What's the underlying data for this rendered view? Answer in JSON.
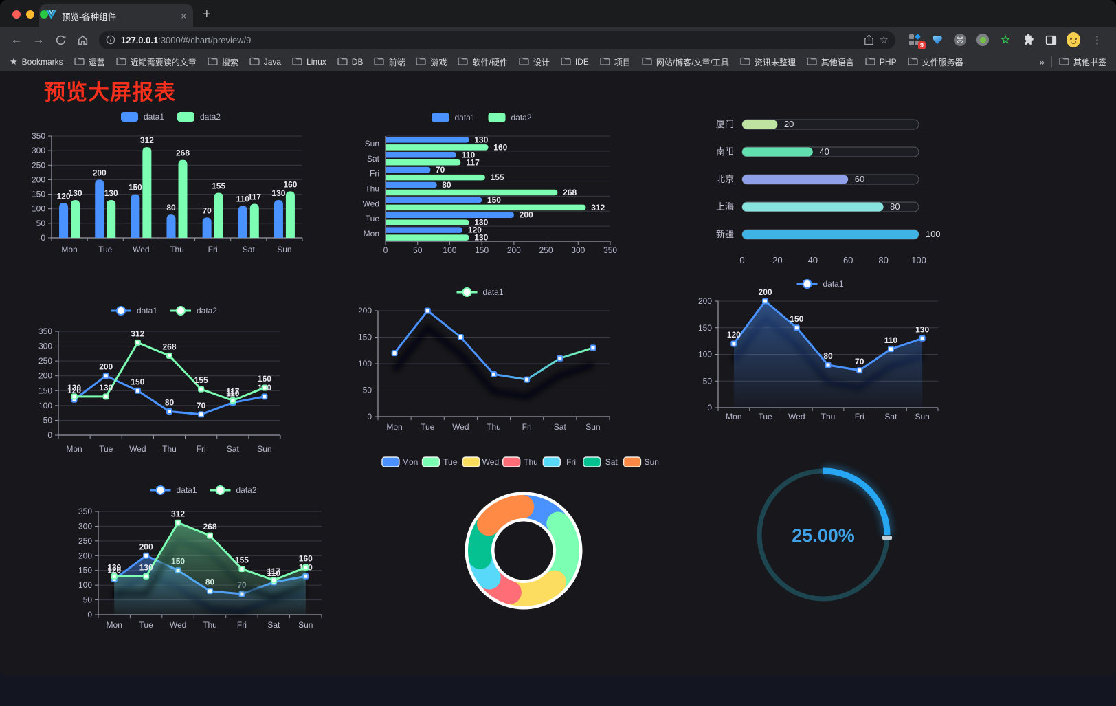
{
  "browser": {
    "window_controls": {
      "close": "#ff5f57",
      "minimize": "#febc2e",
      "maximize": "#28c840"
    },
    "tab": {
      "title": "预览-各种组件",
      "close_glyph": "×",
      "new_tab_glyph": "+"
    },
    "toolbar": {
      "back_glyph": "←",
      "forward_glyph": "→",
      "url_host": "127.0.0.1",
      "url_path": ":3000/#/chart/preview/9",
      "star_glyph": "☆",
      "command_glyph": "⌘",
      "green_star_glyph": "☆",
      "extension_badge": "9",
      "menu_glyph": "⋮"
    },
    "bookmarks_bar": {
      "label": "Bookmarks",
      "star_glyph": "★",
      "folders": [
        "运营",
        "近期需要读的文章",
        "搜索",
        "Java",
        "Linux",
        "DB",
        "前端",
        "游戏",
        "软件/硬件",
        "设计",
        "IDE",
        "项目",
        "网站/博客/文章/工具",
        "资讯未整理",
        "其他语言",
        "PHP",
        "文件服务器"
      ],
      "overflow_glyph": "»",
      "other_label": "其他书签"
    }
  },
  "page": {
    "title": "预览大屏报表"
  },
  "chart_data": [
    {
      "id": "grouped-bar-vertical",
      "type": "bar",
      "orientation": "vertical",
      "categories": [
        "Mon",
        "Tue",
        "Wed",
        "Thu",
        "Fri",
        "Sat",
        "Sun"
      ],
      "series": [
        {
          "name": "data1",
          "color": "#4992ff",
          "values": [
            120,
            200,
            150,
            80,
            70,
            110,
            130
          ]
        },
        {
          "name": "data2",
          "color": "#7cffb2",
          "values": [
            130,
            130,
            312,
            268,
            155,
            117,
            160
          ]
        }
      ],
      "ylim": [
        0,
        350
      ],
      "ytick_step": 50,
      "legend_position": "top",
      "grid": true,
      "value_labels": true
    },
    {
      "id": "grouped-bar-horizontal",
      "type": "bar",
      "orientation": "horizontal",
      "categories": [
        "Mon",
        "Tue",
        "Wed",
        "Thu",
        "Fri",
        "Sat",
        "Sun"
      ],
      "series": [
        {
          "name": "data1",
          "color": "#4992ff",
          "values": [
            120,
            200,
            150,
            80,
            70,
            110,
            130
          ]
        },
        {
          "name": "data2",
          "color": "#7cffb2",
          "values": [
            130,
            130,
            312,
            268,
            155,
            117,
            160
          ]
        }
      ],
      "xlim": [
        0,
        350
      ],
      "xtick_step": 50,
      "legend_position": "top",
      "grid": true,
      "value_labels": true
    },
    {
      "id": "city-progress",
      "type": "bar",
      "subtype": "progress-capsule",
      "max": 100,
      "xticks": [
        0,
        20,
        40,
        60,
        80,
        100
      ],
      "rows": [
        {
          "label": "厦门",
          "value": 20,
          "color": "#bfe3a0"
        },
        {
          "label": "南阳",
          "value": 40,
          "color": "#5fe0ae"
        },
        {
          "label": "北京",
          "value": 60,
          "color": "#8f9fe8"
        },
        {
          "label": "上海",
          "value": 80,
          "color": "#86e3dd"
        },
        {
          "label": "新疆",
          "value": 100,
          "color": "#3fb3e3"
        }
      ]
    },
    {
      "id": "line-multi",
      "type": "line",
      "categories": [
        "Mon",
        "Tue",
        "Wed",
        "Thu",
        "Fri",
        "Sat",
        "Sun"
      ],
      "series": [
        {
          "name": "data1",
          "color": "#4992ff",
          "values": [
            120,
            200,
            150,
            80,
            70,
            110,
            130
          ]
        },
        {
          "name": "data2",
          "color": "#7cffb2",
          "values": [
            130,
            130,
            312,
            268,
            155,
            117,
            160
          ]
        }
      ],
      "ylim": [
        0,
        350
      ],
      "ytick_step": 50,
      "legend_position": "top",
      "value_labels": true
    },
    {
      "id": "line-gradient-shadow",
      "type": "line",
      "categories": [
        "Mon",
        "Tue",
        "Wed",
        "Thu",
        "Fri",
        "Sat",
        "Sun"
      ],
      "series": [
        {
          "name": "data1",
          "gradient": [
            "#4992ff",
            "#7cffb2"
          ],
          "values": [
            120,
            200,
            150,
            80,
            70,
            110,
            130
          ],
          "shadow": true
        }
      ],
      "ylim": [
        0,
        200
      ],
      "ytick_step": 50,
      "legend_position": "top",
      "value_labels": false
    },
    {
      "id": "area-single",
      "type": "area",
      "categories": [
        "Mon",
        "Tue",
        "Wed",
        "Thu",
        "Fri",
        "Sat",
        "Sun"
      ],
      "series": [
        {
          "name": "data1",
          "color": "#4992ff",
          "values": [
            120,
            200,
            150,
            80,
            70,
            110,
            130
          ],
          "area": true,
          "shadow": true
        }
      ],
      "ylim": [
        0,
        200
      ],
      "ytick_step": 50,
      "legend_position": "top",
      "value_labels": true
    },
    {
      "id": "area-multi",
      "type": "area",
      "categories": [
        "Mon",
        "Tue",
        "Wed",
        "Thu",
        "Fri",
        "Sat",
        "Sun"
      ],
      "series": [
        {
          "name": "data1",
          "color": "#4992ff",
          "values": [
            120,
            200,
            150,
            80,
            70,
            110,
            130
          ],
          "area": true,
          "shadow": true
        },
        {
          "name": "data2",
          "color": "#7cffb2",
          "values": [
            130,
            130,
            312,
            268,
            155,
            117,
            160
          ],
          "area": true,
          "shadow": true
        }
      ],
      "ylim": [
        0,
        350
      ],
      "ytick_step": 50,
      "legend_position": "top",
      "value_labels": true
    },
    {
      "id": "weekday-donut",
      "type": "pie",
      "inner_radius_ratio": 0.58,
      "legend_position": "top",
      "items": [
        {
          "label": "Mon",
          "value": 120,
          "color": "#4992ff"
        },
        {
          "label": "Tue",
          "value": 200,
          "color": "#7cffb2"
        },
        {
          "label": "Wed",
          "value": 150,
          "color": "#fddd60"
        },
        {
          "label": "Thu",
          "value": 80,
          "color": "#ff6e76"
        },
        {
          "label": "Fri",
          "value": 70,
          "color": "#58d9f9"
        },
        {
          "label": "Sat",
          "value": 110,
          "color": "#05c091"
        },
        {
          "label": "Sun",
          "value": 130,
          "color": "#ff8a45"
        }
      ]
    },
    {
      "id": "percent-gauge",
      "type": "gauge",
      "value": 25,
      "max": 100,
      "label": "25.00%",
      "progress_color": "#27a7f3",
      "track_color": "#1d4651",
      "text_color": "#3fa2e8"
    }
  ]
}
